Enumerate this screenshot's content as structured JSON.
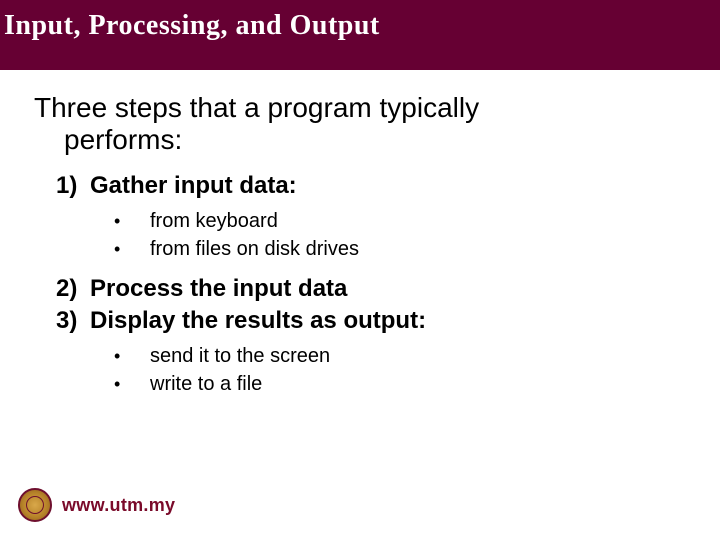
{
  "colors": {
    "title_bg": "#660033",
    "title_text": "#ffffff",
    "body_text": "#000000",
    "site_text": "#7a0a2a",
    "background": "#ffffff"
  },
  "typography": {
    "title_fontsize": 28,
    "intro_fontsize": 28,
    "list_fontsize": 24,
    "bullet_fontsize": 20,
    "site_fontsize": 18,
    "title_font": "Georgia serif bold",
    "body_font": "Arial"
  },
  "title": "Input, Processing, and Output",
  "intro_line1": "Three steps that a program typically",
  "intro_line2": "performs:",
  "items": [
    {
      "num": "1)",
      "label": "Gather input data:"
    },
    {
      "num": "2)",
      "label": "Process the input data"
    },
    {
      "num": "3)",
      "label": "Display the results as output:"
    }
  ],
  "sub1": [
    "from keyboard",
    "from files on disk drives"
  ],
  "sub3": [
    "send it to the screen",
    "write to a file"
  ],
  "footer_site": "www.utm.my"
}
